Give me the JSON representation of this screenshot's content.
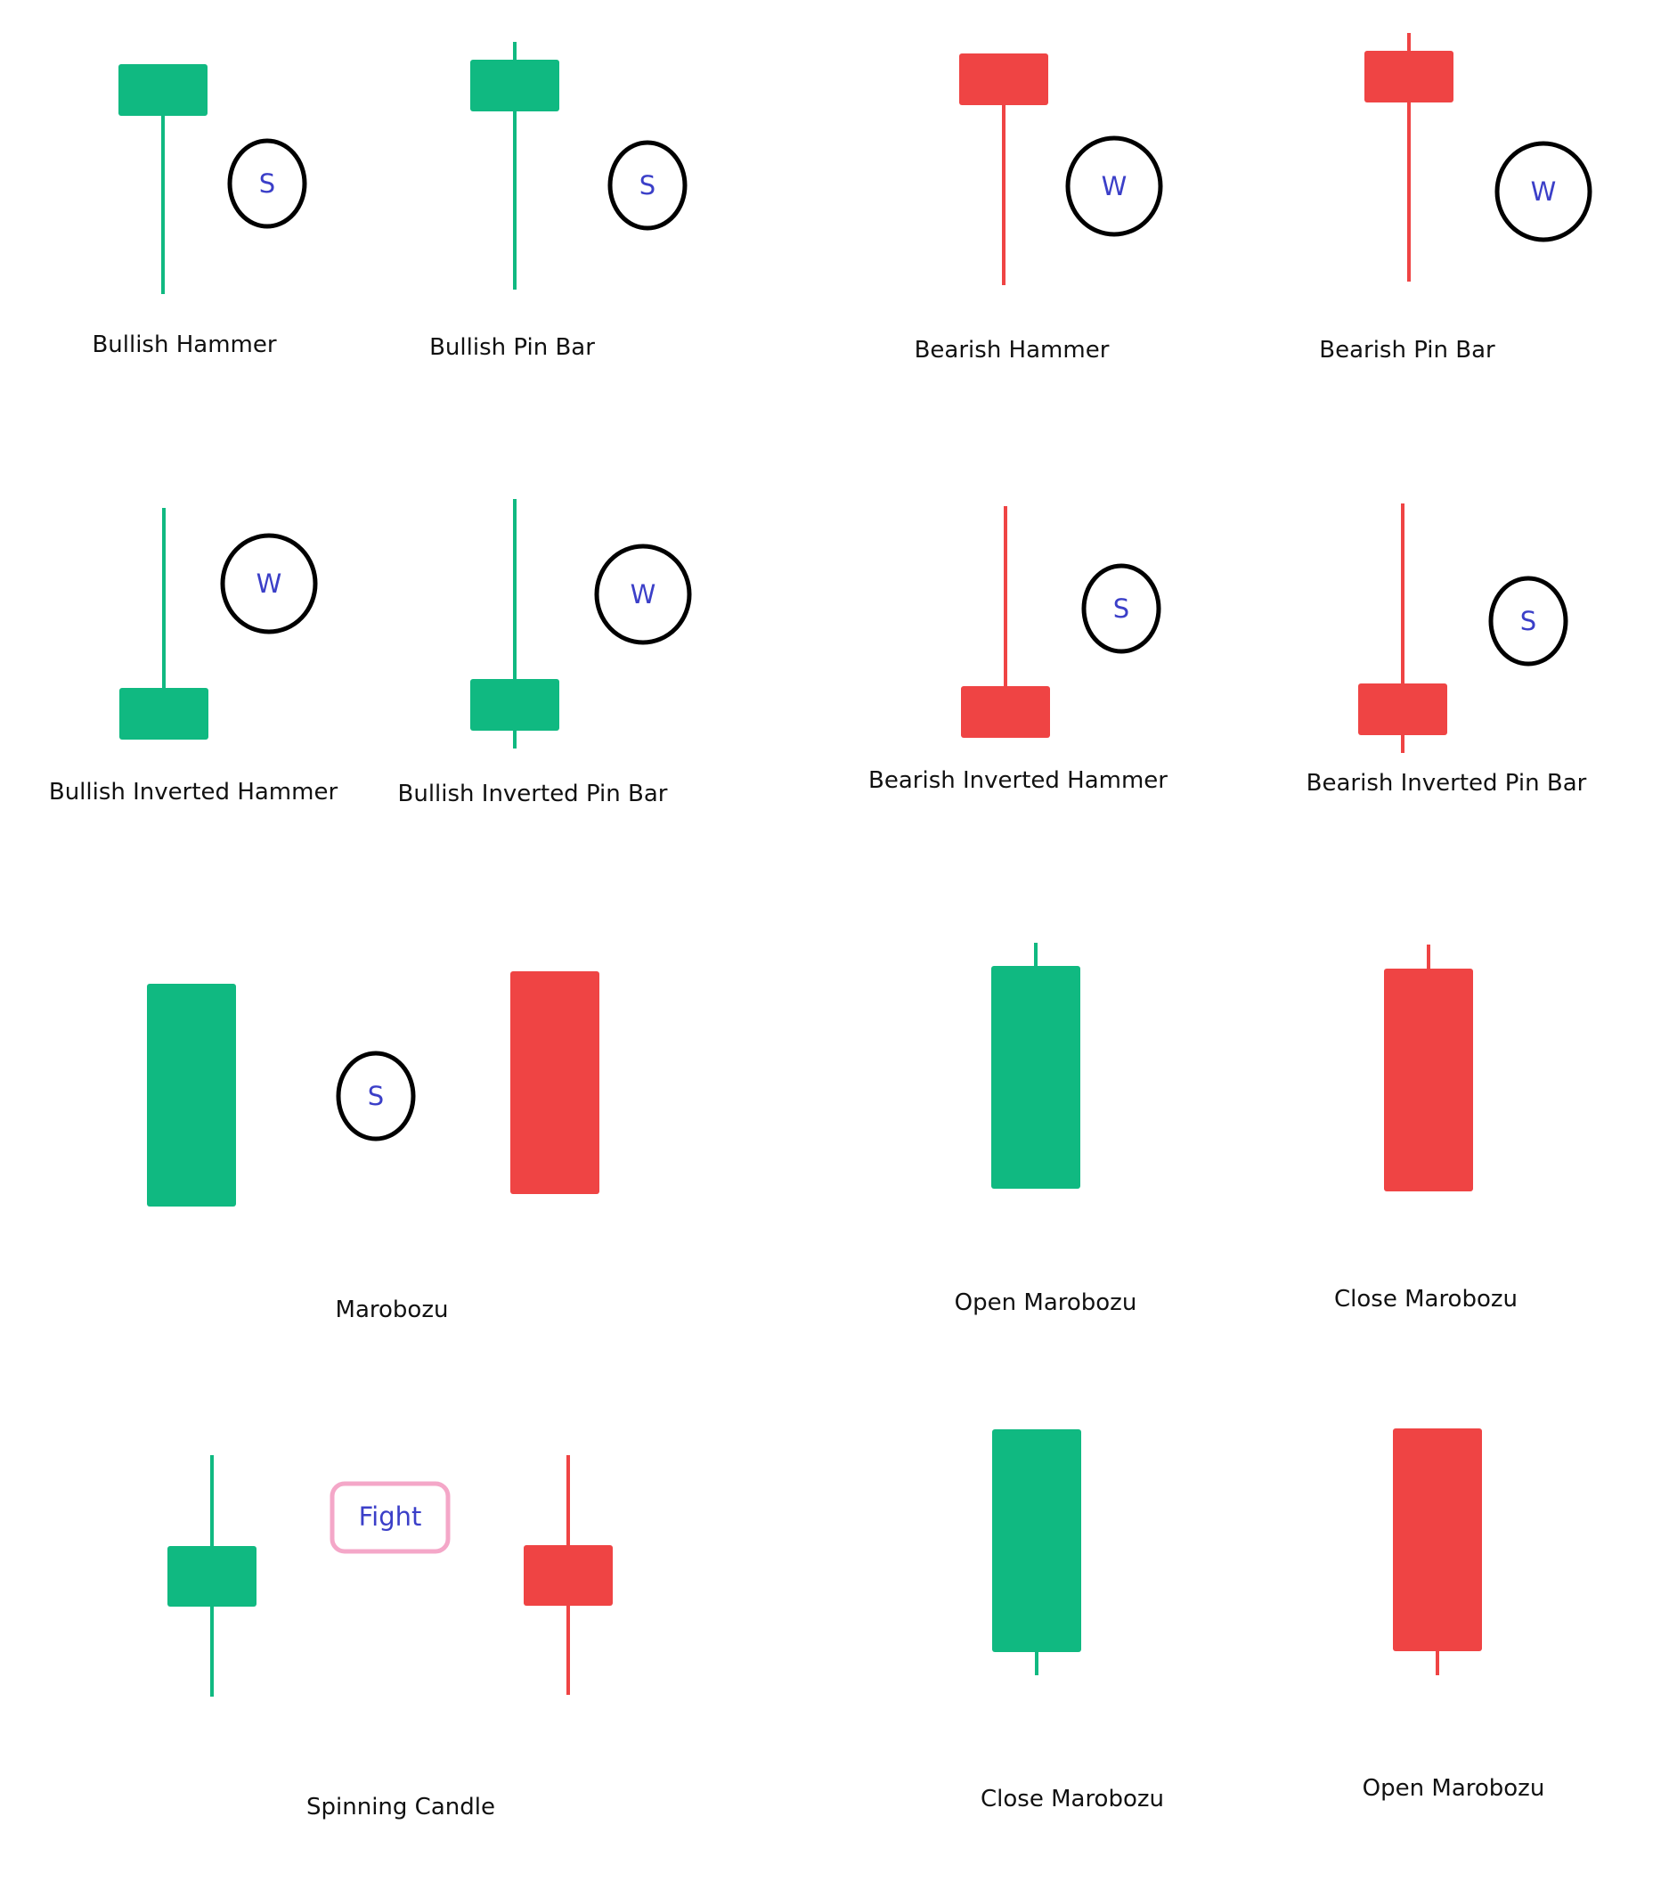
{
  "colors": {
    "bullish": "#10b981",
    "bearish": "#ef4444",
    "badge_outline": "#000000",
    "badge_text": "#3b3fc8",
    "fight_outline": "#f4a7c8",
    "label_text": "#111111"
  },
  "labels": {
    "bullish_hammer": "Bullish Hammer",
    "bullish_pin_bar": "Bullish Pin Bar",
    "bearish_hammer": "Bearish Hammer",
    "bearish_pin_bar": "Bearish Pin Bar",
    "bullish_inverted_hammer": "Bullish Inverted Hammer",
    "bullish_inverted_pin_bar": "Bullish Inverted Pin Bar",
    "bearish_inverted_hammer": "Bearish Inverted Hammer",
    "bearish_inverted_pin_bar": "Bearish Inverted Pin Bar",
    "marobozu": "Marobozu",
    "open_marobozu_top": "Open Marobozu",
    "close_marobozu_top": "Close Marobozu",
    "spinning_candle": "Spinning Candle",
    "close_marobozu_bottom": "Close Marobozu",
    "open_marobozu_bottom": "Open Marobozu"
  },
  "badges": {
    "bullish_hammer": "S",
    "bullish_pin_bar": "S",
    "bearish_hammer": "W",
    "bearish_pin_bar": "W",
    "bullish_inverted_hammer": "W",
    "bullish_inverted_pin_bar": "W",
    "bearish_inverted_hammer": "S",
    "bearish_inverted_pin_bar": "S",
    "marobozu": "S",
    "spinning_candle": "Fight"
  }
}
